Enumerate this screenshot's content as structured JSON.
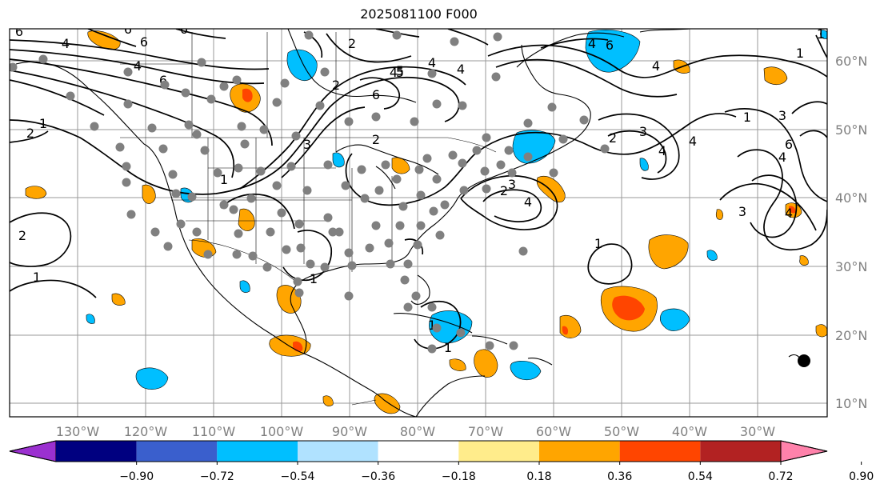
{
  "title": "2025081100 F000",
  "map": {
    "lon_ticks": [
      "130°W",
      "120°W",
      "110°W",
      "100°W",
      "90°W",
      "80°W",
      "70°W",
      "60°W",
      "50°W",
      "40°W",
      "30°W"
    ],
    "lat_ticks": [
      "60°N",
      "50°N",
      "40°N",
      "30°N",
      "20°N",
      "10°N"
    ],
    "contour_labels": [
      "6",
      "6",
      "6",
      "6",
      "4",
      "4",
      "5",
      "4",
      "2",
      "2",
      "4",
      "6",
      "6",
      "5",
      "4",
      "3",
      "1",
      "2",
      "3",
      "4",
      "4",
      "6",
      "4",
      "1",
      "3",
      "6",
      "4",
      "3",
      "2",
      "1",
      "2",
      "1",
      "2",
      "3",
      "4",
      "4",
      "4",
      "1",
      "1",
      "1",
      "1",
      "1",
      "1",
      "2"
    ]
  },
  "colorbar": {
    "colors": [
      "#9b30d0",
      "#000080",
      "#3a5fcd",
      "#00bfff",
      "#b0e2ff",
      "#ffffff",
      "#ffec8b",
      "#ffa500",
      "#ff4500",
      "#b22222",
      "#ff82ab"
    ],
    "ticks": [
      "−0.90",
      "−0.72",
      "−0.54",
      "−0.36",
      "−0.18",
      "0.18",
      "0.36",
      "0.54",
      "0.72",
      "0.90"
    ]
  },
  "storm_marker": {
    "label": ""
  }
}
